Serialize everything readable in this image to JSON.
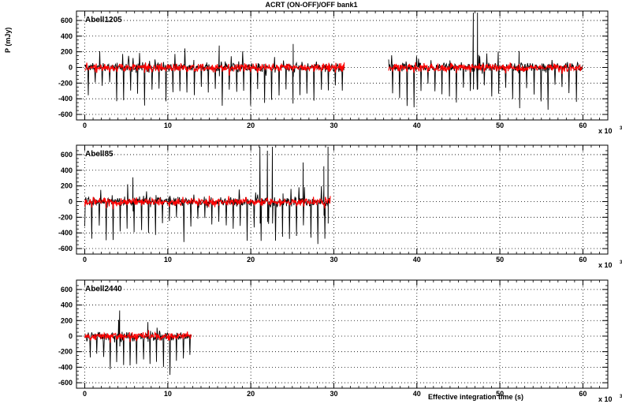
{
  "chart_data": {
    "type": "line",
    "title": "ACRT (ON-OFF)/OFF bank1",
    "ylabel": "P (mJy)",
    "xlabel": "Effective integration time (s)",
    "x_multiplier": "x 10",
    "x_multiplier_exponent": "3",
    "xlim": [
      -1,
      63
    ],
    "ylim": [
      -650,
      700
    ],
    "xticks": [
      "0",
      "10",
      "20",
      "30",
      "40",
      "50",
      "60"
    ],
    "yticks": [
      "600",
      "400",
      "200",
      "0",
      "-200",
      "-400",
      "-600"
    ],
    "grid": true,
    "colors": {
      "raw": "#000000",
      "smoothed": "#ff0000"
    },
    "panels": [
      {
        "name": "Abell1205",
        "segments": [
          {
            "x_start": 0.0,
            "x_end": 31.3
          },
          {
            "x_start": 36.6,
            "x_end": 60.0
          }
        ],
        "baseline_noise_mJy": 55,
        "dip_period_ks": 0.85,
        "dip_depth_range_mJy": [
          -300,
          -560
        ],
        "spikes": [
          {
            "x": 16.2,
            "y": 280
          },
          {
            "x": 25.1,
            "y": 300
          },
          {
            "x": 46.8,
            "y": 700
          },
          {
            "x": 47.3,
            "y": 700
          }
        ]
      },
      {
        "name": "Abell85",
        "segments": [
          {
            "x_start": 0.0,
            "x_end": 29.6
          }
        ],
        "baseline_noise_mJy": 55,
        "dip_period_ks": 0.85,
        "dip_depth_range_mJy": [
          -300,
          -650
        ],
        "spikes": [
          {
            "x": 5.8,
            "y": 310
          },
          {
            "x": 21.1,
            "y": 700
          },
          {
            "x": 22.0,
            "y": 650
          },
          {
            "x": 22.6,
            "y": 700
          },
          {
            "x": 26.3,
            "y": 500
          },
          {
            "x": 28.8,
            "y": 450
          },
          {
            "x": 29.3,
            "y": 700
          }
        ]
      },
      {
        "name": "Abell2440",
        "segments": [
          {
            "x_start": 0.0,
            "x_end": 12.9
          }
        ],
        "baseline_noise_mJy": 55,
        "dip_period_ks": 0.8,
        "dip_depth_range_mJy": [
          -300,
          -640
        ],
        "spikes": [
          {
            "x": 4.2,
            "y": 330
          },
          {
            "x": 7.6,
            "y": 180
          }
        ]
      }
    ]
  }
}
